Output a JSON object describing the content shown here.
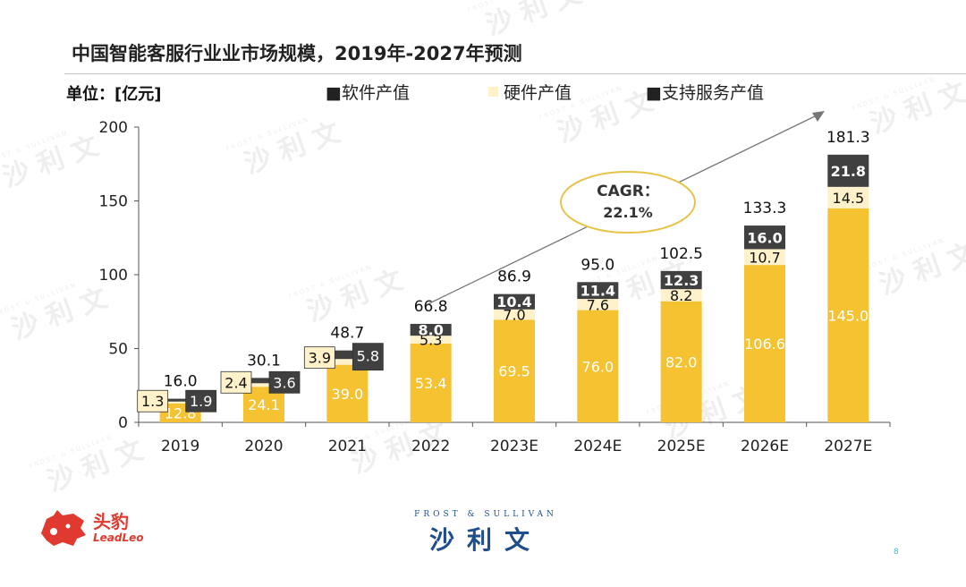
{
  "slide": {
    "title": "中国智能客服行业业市场规模，2019年-2027年预测",
    "unit": "单位：[亿元]",
    "page_number": "8"
  },
  "legend": [
    {
      "label": "■软件产值",
      "color": "#F5C232"
    },
    {
      "label": "硬件产值",
      "color": "#FFF1C9"
    },
    {
      "label": "■支持服务产值",
      "color": "#404040"
    }
  ],
  "cagr": {
    "line1": "CAGR：",
    "line2": "22.1%"
  },
  "logos": {
    "leadleo_cn": "头豹",
    "leadleo_en": "LeadLeo",
    "frost_en": "FROST & SULLIVAN",
    "frost_cn": "沙利文"
  },
  "watermark": {
    "cn": "沙 利 文",
    "en": "FROST & SULLIVAN"
  },
  "chart_data": {
    "type": "bar",
    "stacked": true,
    "categories": [
      "2019",
      "2020",
      "2021",
      "2022",
      "2023E",
      "2024E",
      "2025E",
      "2026E",
      "2027E"
    ],
    "series": [
      {
        "name": "软件产值",
        "values": [
          12.8,
          24.1,
          39.0,
          53.4,
          69.5,
          76.0,
          82.0,
          106.6,
          145.0
        ],
        "color": "#F5C232"
      },
      {
        "name": "硬件产值",
        "values": [
          1.3,
          2.4,
          3.9,
          5.3,
          7.0,
          7.6,
          8.2,
          10.7,
          14.5
        ],
        "color": "#FFF1C9"
      },
      {
        "name": "支持服务产值",
        "values": [
          1.9,
          3.6,
          5.8,
          8.0,
          10.4,
          11.4,
          12.3,
          16.0,
          21.8
        ],
        "color": "#404040"
      }
    ],
    "totals": [
      16.0,
      30.1,
      48.7,
      66.8,
      86.9,
      95.0,
      102.5,
      133.3,
      181.3
    ],
    "value_labels": {
      "software": [
        "12.8",
        "24.1",
        "39.0",
        "53.4",
        "69.5",
        "76.0",
        "82.0",
        "106.6",
        "145.0"
      ],
      "hardware": [
        "1.3",
        "2.4",
        "3.9",
        "5.3",
        "7.0",
        "7.6",
        "8.2",
        "10.7",
        "14.5"
      ],
      "service": [
        "1.9",
        "3.6",
        "5.8",
        "8.0",
        "10.4",
        "11.4",
        "12.3",
        "16.0",
        "21.8"
      ],
      "totals": [
        "16.0",
        "30.1",
        "48.7",
        "66.8",
        "86.9",
        "95.0",
        "102.5",
        "133.3",
        "181.3"
      ]
    },
    "y_ticks": [
      0,
      50,
      100,
      150,
      200
    ],
    "y_tick_labels": [
      "0",
      "50",
      "100",
      "150",
      "200"
    ],
    "ylim": [
      0,
      200
    ],
    "grid": false,
    "legend_position": "top"
  }
}
